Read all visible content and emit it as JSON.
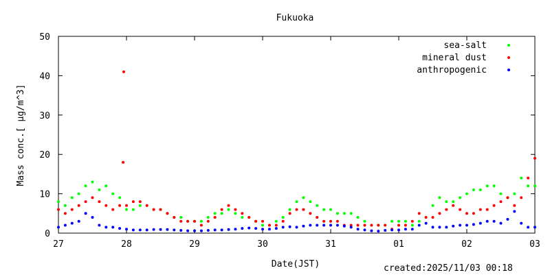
{
  "chart_data": {
    "type": "scatter",
    "title": "Fukuoka",
    "xlabel": "Date(JST)",
    "ylabel": "Mass conc.[ μg/m^3]",
    "ylim": [
      0,
      50
    ],
    "yticks": [
      "0",
      "10",
      "20",
      "30",
      "40",
      "50"
    ],
    "xlim": [
      0,
      7
    ],
    "xticks": [
      {
        "x": 0,
        "label": "27"
      },
      {
        "x": 1,
        "label": "28"
      },
      {
        "x": 2,
        "label": "29"
      },
      {
        "x": 3,
        "label": "30"
      },
      {
        "x": 4,
        "label": "31"
      },
      {
        "x": 5,
        "label": "01"
      },
      {
        "x": 6,
        "label": "02"
      },
      {
        "x": 7,
        "label": "03"
      }
    ],
    "grid": false,
    "legend_position": "top-right",
    "series": [
      {
        "name": "sea-salt",
        "color": "#00ff00",
        "x": [
          0.0,
          0.1,
          0.2,
          0.3,
          0.4,
          0.5,
          0.6,
          0.7,
          0.8,
          0.9,
          1.0,
          1.1,
          1.2,
          1.3,
          1.4,
          1.5,
          1.6,
          1.7,
          1.8,
          1.9,
          2.0,
          2.1,
          2.2,
          2.3,
          2.4,
          2.5,
          2.6,
          2.7,
          2.8,
          2.9,
          3.0,
          3.1,
          3.2,
          3.3,
          3.4,
          3.5,
          3.6,
          3.7,
          3.8,
          3.9,
          4.0,
          4.1,
          4.2,
          4.3,
          4.4,
          4.5,
          4.6,
          4.7,
          4.8,
          4.9,
          5.0,
          5.1,
          5.2,
          5.3,
          5.4,
          5.5,
          5.6,
          5.7,
          5.8,
          5.9,
          6.0,
          6.1,
          6.2,
          6.3,
          6.4,
          6.5,
          6.6,
          6.7,
          6.8,
          6.9,
          7.0
        ],
        "y": [
          8,
          7,
          9,
          10,
          12,
          13,
          11,
          12,
          10,
          9,
          6,
          6,
          7,
          7,
          6,
          6,
          5,
          4,
          4,
          3,
          3,
          3,
          4,
          5,
          5,
          6,
          5,
          4,
          4,
          3,
          2,
          2,
          3,
          4,
          6,
          8,
          9,
          8,
          7,
          6,
          6,
          5,
          5,
          5,
          4,
          3,
          2,
          2,
          2,
          3,
          3,
          3,
          2,
          3,
          4,
          7,
          9,
          8,
          8,
          9,
          10,
          11,
          11,
          12,
          12,
          10,
          9,
          10,
          14,
          12,
          12
        ]
      },
      {
        "name": "mineral dust",
        "color": "#ff0000",
        "x": [
          0.0,
          0.1,
          0.2,
          0.3,
          0.4,
          0.5,
          0.6,
          0.7,
          0.8,
          0.9,
          0.95,
          0.96,
          1.0,
          1.1,
          1.2,
          1.3,
          1.4,
          1.5,
          1.6,
          1.7,
          1.8,
          1.9,
          2.0,
          2.1,
          2.2,
          2.3,
          2.4,
          2.5,
          2.6,
          2.7,
          2.8,
          2.9,
          3.0,
          3.1,
          3.2,
          3.3,
          3.4,
          3.5,
          3.6,
          3.7,
          3.8,
          3.9,
          4.0,
          4.1,
          4.2,
          4.3,
          4.4,
          4.5,
          4.6,
          4.7,
          4.8,
          4.9,
          5.0,
          5.1,
          5.2,
          5.3,
          5.4,
          5.5,
          5.6,
          5.7,
          5.8,
          5.9,
          6.0,
          6.1,
          6.2,
          6.3,
          6.4,
          6.5,
          6.6,
          6.7,
          6.8,
          6.9,
          7.0
        ],
        "y": [
          6,
          5,
          6,
          7,
          8,
          9,
          8,
          7,
          6,
          7,
          18,
          41,
          7,
          8,
          8,
          7,
          6,
          6,
          5,
          4,
          3,
          3,
          3,
          2,
          3,
          4,
          6,
          7,
          6,
          5,
          4,
          3,
          3,
          2,
          2,
          3,
          5,
          6,
          6,
          5,
          4,
          3,
          3,
          3,
          2,
          2,
          2,
          2,
          2,
          2,
          2,
          1,
          2,
          2,
          3,
          5,
          4,
          4,
          5,
          6,
          7,
          6,
          5,
          5,
          6,
          6,
          7,
          8,
          9,
          7,
          9,
          14,
          19
        ]
      },
      {
        "name": "anthropogenic",
        "color": "#0000ff",
        "x": [
          0.0,
          0.1,
          0.2,
          0.3,
          0.4,
          0.5,
          0.6,
          0.7,
          0.8,
          0.9,
          1.0,
          1.1,
          1.2,
          1.3,
          1.4,
          1.5,
          1.6,
          1.7,
          1.8,
          1.9,
          2.0,
          2.1,
          2.2,
          2.3,
          2.4,
          2.5,
          2.6,
          2.7,
          2.8,
          2.9,
          3.0,
          3.1,
          3.2,
          3.3,
          3.4,
          3.5,
          3.6,
          3.7,
          3.8,
          3.9,
          4.0,
          4.1,
          4.2,
          4.3,
          4.4,
          4.5,
          4.6,
          4.7,
          4.8,
          4.9,
          5.0,
          5.1,
          5.2,
          5.3,
          5.4,
          5.5,
          5.6,
          5.7,
          5.8,
          5.9,
          6.0,
          6.1,
          6.2,
          6.3,
          6.4,
          6.5,
          6.6,
          6.7,
          6.8,
          6.9,
          7.0
        ],
        "y": [
          1.5,
          2,
          2.5,
          3,
          5,
          4,
          2,
          1.5,
          1.5,
          1.2,
          1,
          0.8,
          0.8,
          0.8,
          0.9,
          0.9,
          0.9,
          0.8,
          0.7,
          0.6,
          0.6,
          0.6,
          0.7,
          0.8,
          0.8,
          0.9,
          1,
          1.2,
          1.3,
          1.2,
          1,
          1,
          1.2,
          1.5,
          1.6,
          1.5,
          1.8,
          2,
          2,
          2,
          2,
          2,
          1.8,
          1.5,
          1,
          0.8,
          0.6,
          0.5,
          0.7,
          0.8,
          0.8,
          1,
          1,
          2,
          2.5,
          1.5,
          1.5,
          1.5,
          1.8,
          2,
          2,
          2.2,
          2.5,
          3,
          3,
          2.5,
          3.5,
          5.5,
          2.5,
          1.5,
          1.5
        ]
      }
    ]
  },
  "footer": {
    "created": "created:2025/11/03 00:18"
  }
}
